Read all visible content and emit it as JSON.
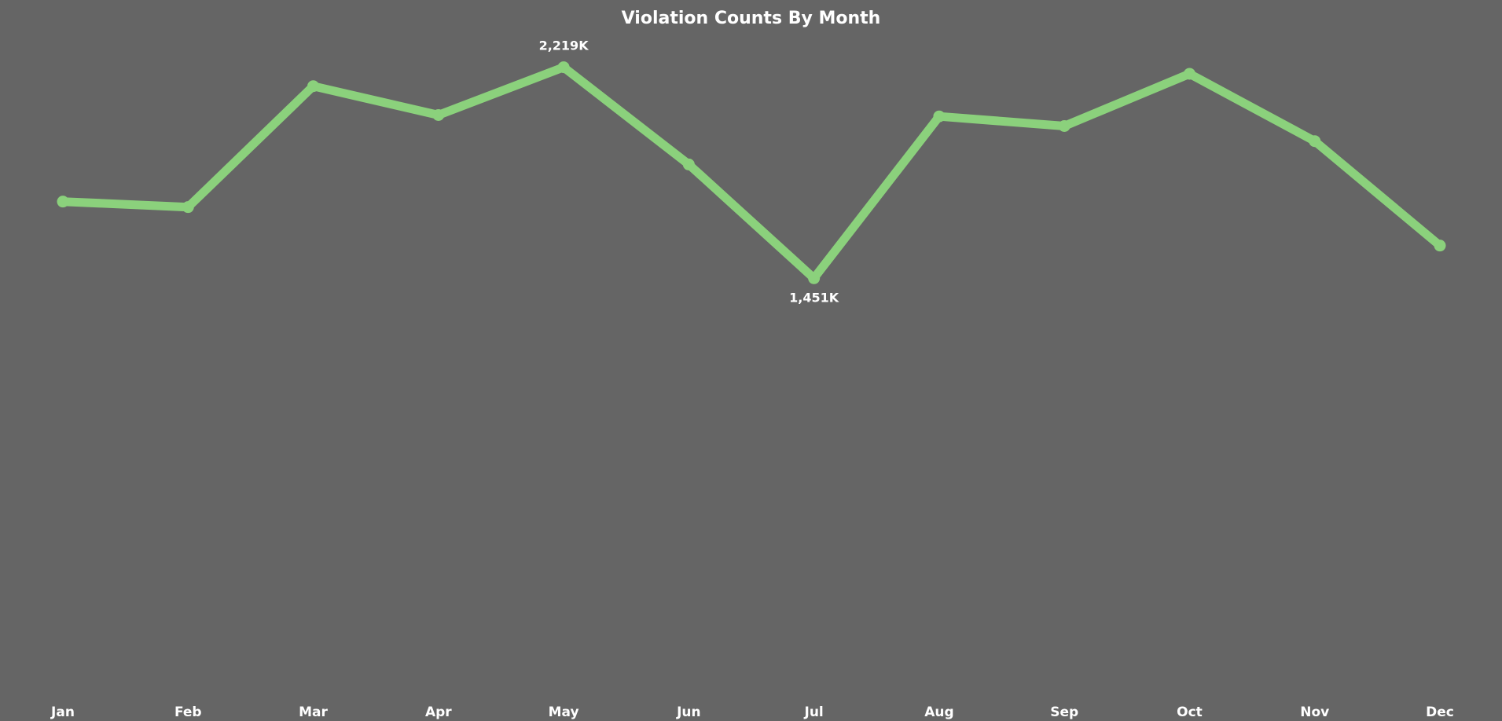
{
  "chart_data": {
    "type": "line",
    "title": "Violation Counts By Month",
    "xlabel": "",
    "ylabel": "",
    "categories": [
      "Jan",
      "Feb",
      "Mar",
      "Apr",
      "May",
      "Jun",
      "Jul",
      "Aug",
      "Sep",
      "Oct",
      "Nov",
      "Dec"
    ],
    "series": [
      {
        "values": [
          1730,
          1710,
          2150,
          2045,
          2219,
          1865,
          1451,
          2040,
          2005,
          2195,
          1950,
          1570
        ],
        "color": "#8bd17c"
      }
    ],
    "data_labels": [
      {
        "category": "May",
        "text": "2,219K"
      },
      {
        "category": "Jul",
        "text": "1,451K"
      }
    ],
    "ylim": [
      0,
      2420
    ],
    "grid": false,
    "legend": "none",
    "colors": {
      "background": "#656565",
      "line": "#8bd17c",
      "text": "#ffffff"
    }
  }
}
